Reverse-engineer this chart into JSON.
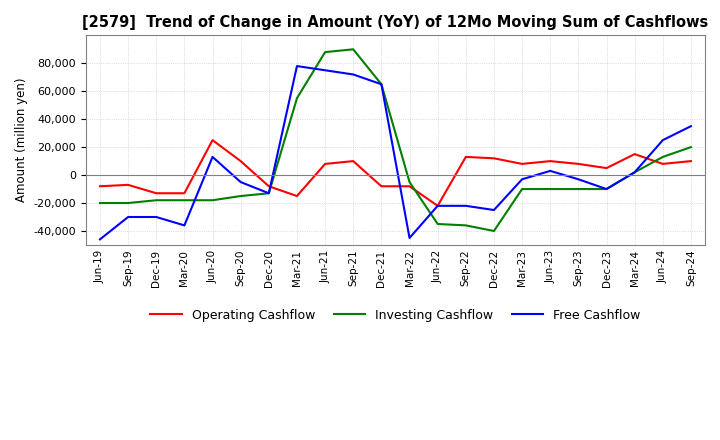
{
  "title": "[2579]  Trend of Change in Amount (YoY) of 12Mo Moving Sum of Cashflows",
  "ylabel": "Amount (million yen)",
  "ylim": [
    -50000,
    100000
  ],
  "yticks": [
    -40000,
    -20000,
    0,
    20000,
    40000,
    60000,
    80000
  ],
  "x_labels": [
    "Jun-19",
    "Sep-19",
    "Dec-19",
    "Mar-20",
    "Jun-20",
    "Sep-20",
    "Dec-20",
    "Mar-21",
    "Jun-21",
    "Sep-21",
    "Dec-21",
    "Mar-22",
    "Jun-22",
    "Sep-22",
    "Dec-22",
    "Mar-23",
    "Jun-23",
    "Sep-23",
    "Dec-23",
    "Mar-24",
    "Jun-24",
    "Sep-24"
  ],
  "operating_cashflow": [
    -8000,
    -7000,
    -13000,
    -13000,
    25000,
    10000,
    -8000,
    -15000,
    8000,
    10000,
    -8000,
    -8000,
    -22000,
    13000,
    12000,
    8000,
    10000,
    8000,
    5000,
    15000,
    8000,
    10000
  ],
  "investing_cashflow": [
    -20000,
    -20000,
    -18000,
    -18000,
    -18000,
    -15000,
    -13000,
    55000,
    88000,
    90000,
    65000,
    -5000,
    -35000,
    -36000,
    -40000,
    -10000,
    -10000,
    -10000,
    -10000,
    2000,
    13000,
    20000
  ],
  "free_cashflow": [
    -46000,
    -30000,
    -30000,
    -36000,
    13000,
    -5000,
    -13000,
    78000,
    75000,
    72000,
    65000,
    -45000,
    -22000,
    -22000,
    -25000,
    -3000,
    3000,
    -3000,
    -10000,
    2000,
    25000,
    35000
  ],
  "operating_color": "#ff0000",
  "investing_color": "#008000",
  "free_color": "#0000ff",
  "background_color": "#ffffff",
  "grid_color": "#c0c0c0"
}
